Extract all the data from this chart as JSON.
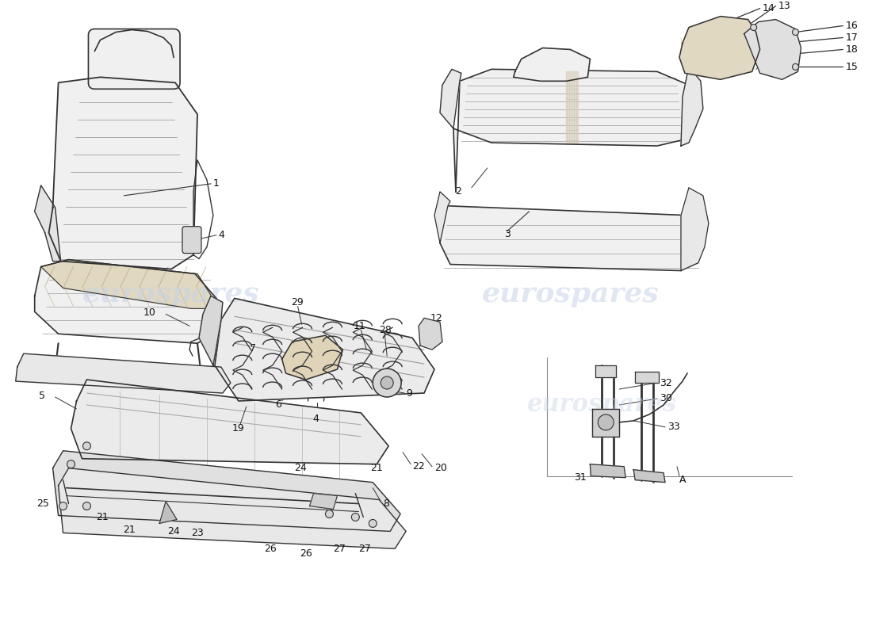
{
  "background_color": "#ffffff",
  "line_color": "#333333",
  "label_color": "#111111",
  "watermark_color": "#c8d4e8",
  "watermark_text": "eurospares",
  "figsize": [
    11.0,
    8.0
  ],
  "dpi": 100
}
